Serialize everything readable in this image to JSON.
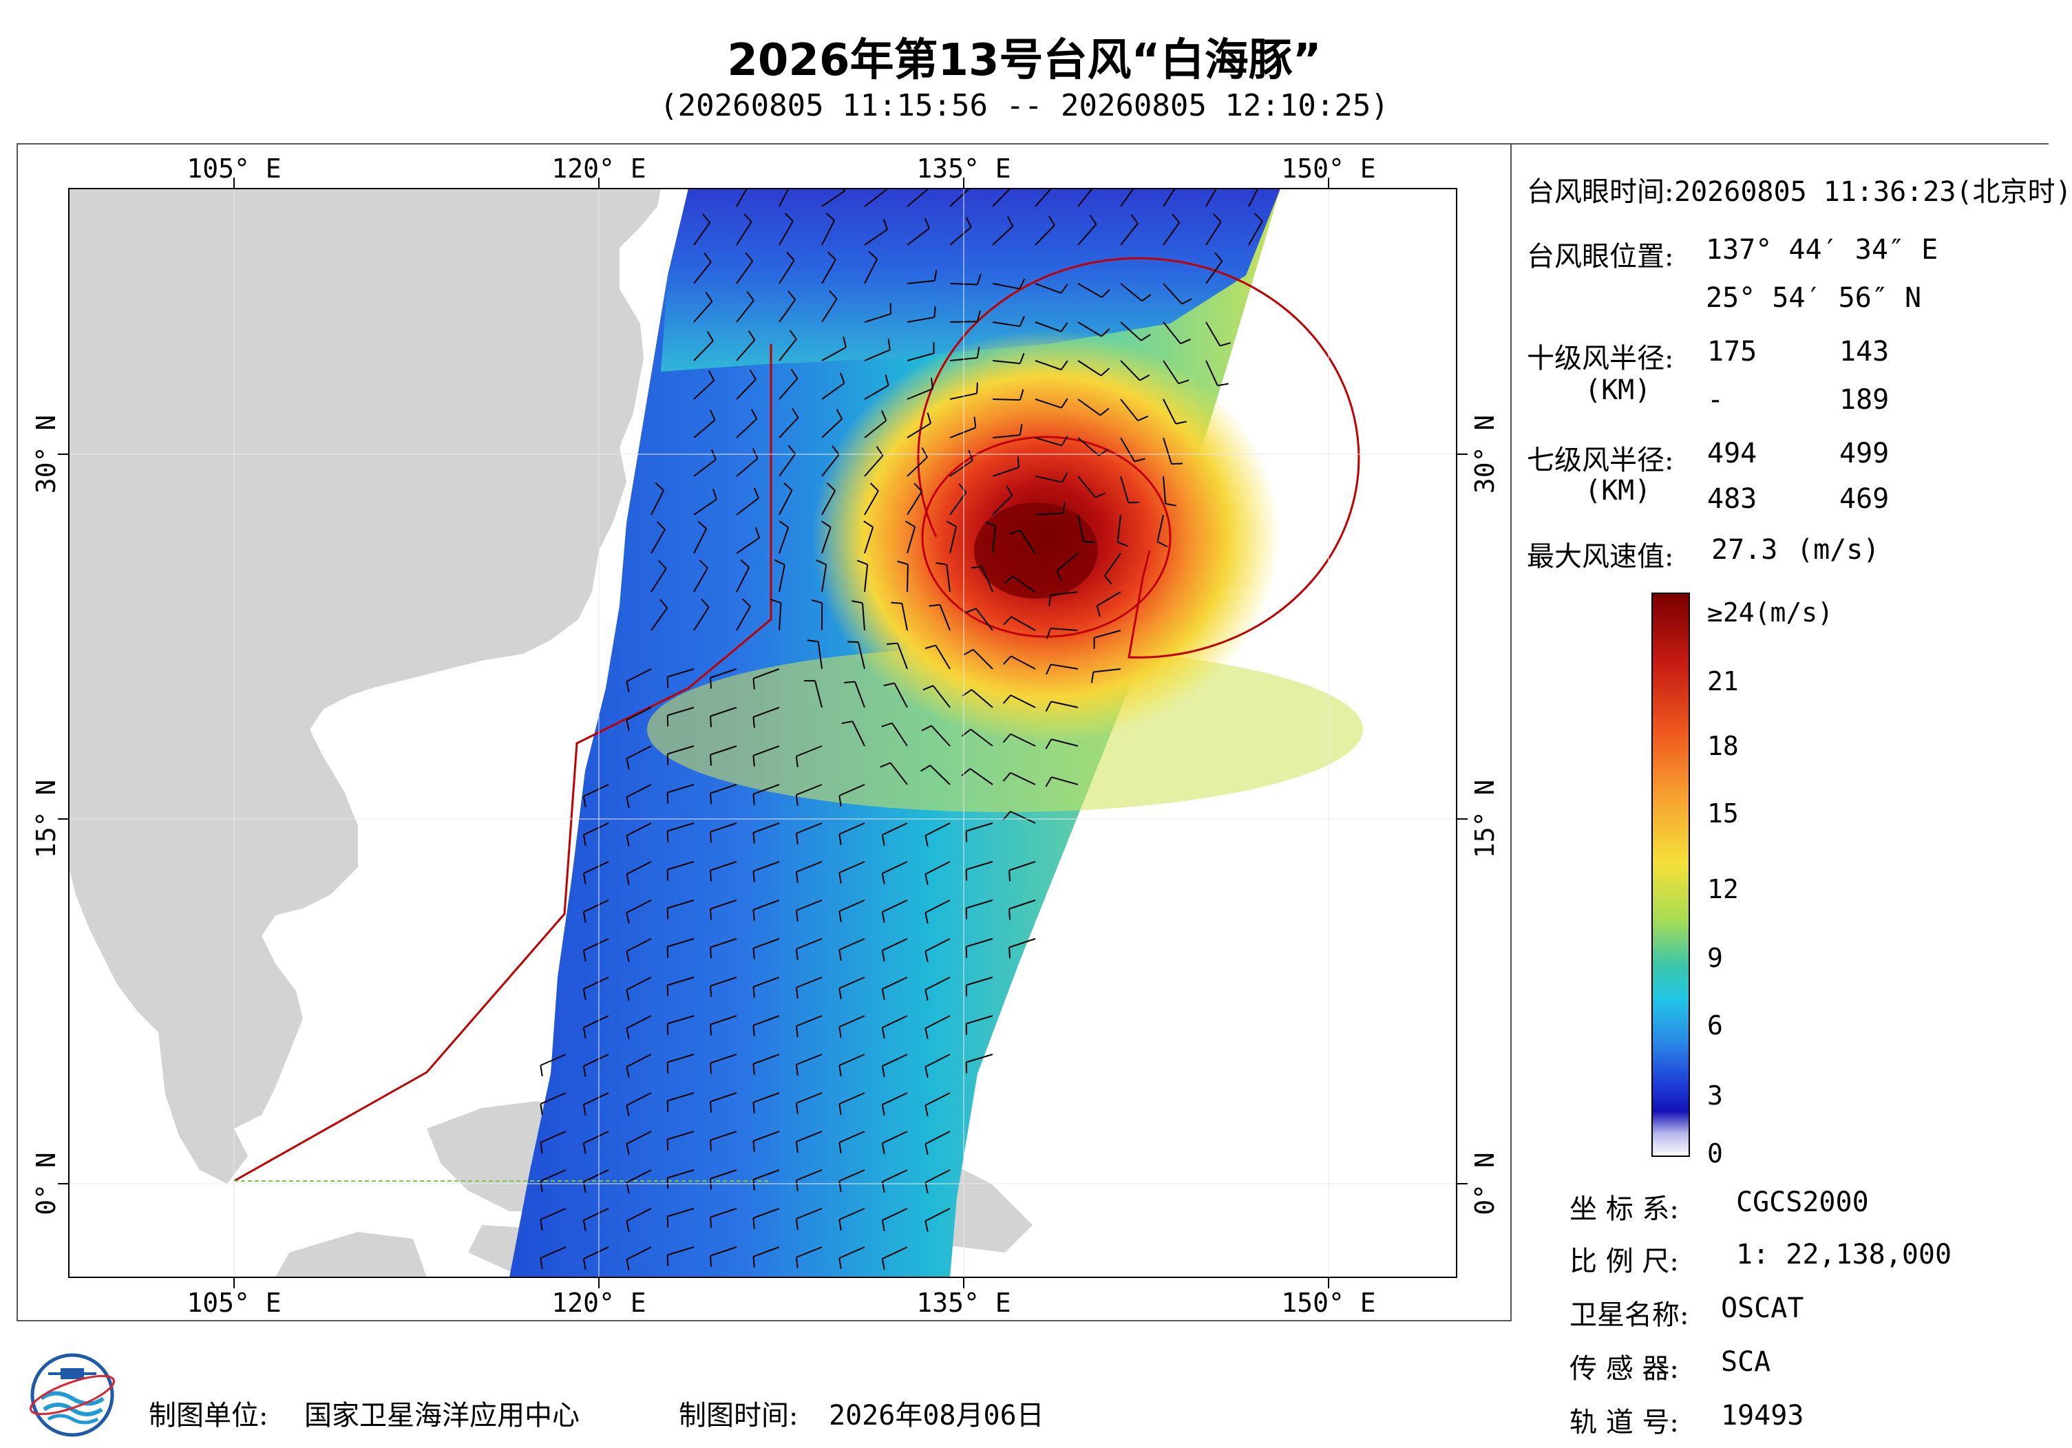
{
  "title": "2026年第13号台风“白海豚”",
  "subtitle": "(20260805 11:15:56 -- 20260805 12:10:25)",
  "axes": {
    "x_ticks_top": [
      "105° E",
      "120° E",
      "135° E",
      "150° E"
    ],
    "x_ticks_bottom": [
      "105° E",
      "120° E",
      "135° E",
      "150° E"
    ],
    "y_ticks_left": [
      "30° N",
      "15° N",
      "0° N"
    ],
    "y_ticks_right": [
      "30° N",
      "15° N",
      "0° N"
    ]
  },
  "info": {
    "eye_time_label": "台风眼时间:",
    "eye_time_value": "20260805 11:36:23(北京时)",
    "eye_pos_label": "台风眼位置:",
    "eye_lon": "137° 44′ 34″ E",
    "eye_lat": "25° 54′ 56″ N",
    "r10_label": "十级风半径:",
    "r10_unit": "(KM)",
    "r10_values": [
      "175",
      "143",
      "-",
      "189"
    ],
    "r7_label": "七级风半径:",
    "r7_unit": "(KM)",
    "r7_values": [
      "494",
      "499",
      "483",
      "469"
    ],
    "max_wind_label": "最大风速值:",
    "max_wind_value": "27.3",
    "max_wind_unit": "(m/s)"
  },
  "colorbar": {
    "labels": [
      "≥24(m/s)",
      "21",
      "18",
      "15",
      "12",
      "9",
      "6",
      "3",
      "0"
    ],
    "colors": [
      "#8b0000",
      "#d7191c",
      "#f46d43",
      "#fdae61",
      "#fee08b",
      "#d9ef8b",
      "#66c2a5",
      "#1fc8e6",
      "#2b83ba",
      "#1d3fd0",
      "#1010b0",
      "#c8c8f0",
      "#ffffff"
    ]
  },
  "meta": {
    "crs_label": "坐 标 系:",
    "crs_value": "CGCS2000",
    "scale_label": "比 例 尺:",
    "scale_value": "1: 22,138,000",
    "sat_label": "卫星名称:",
    "sat_value": "OSCAT",
    "sensor_label": "传 感 器:",
    "sensor_value": "SCA",
    "orbit_label": "轨 道 号:",
    "orbit_value": "19493"
  },
  "footer": {
    "unit_label": "制图单位:",
    "unit_value": "国家卫星海洋应用中心",
    "date_label": "制图时间:",
    "date_value": "2026年08月06日"
  },
  "map_colors": {
    "land": "#d3d3d3",
    "sea": "#ffffff",
    "boundary": "#c00000",
    "low_wind": "#1f4fd6",
    "mid_wind": "#32b4d8",
    "high_wind": "#f2e34a",
    "storm_core": "#c41a12"
  }
}
